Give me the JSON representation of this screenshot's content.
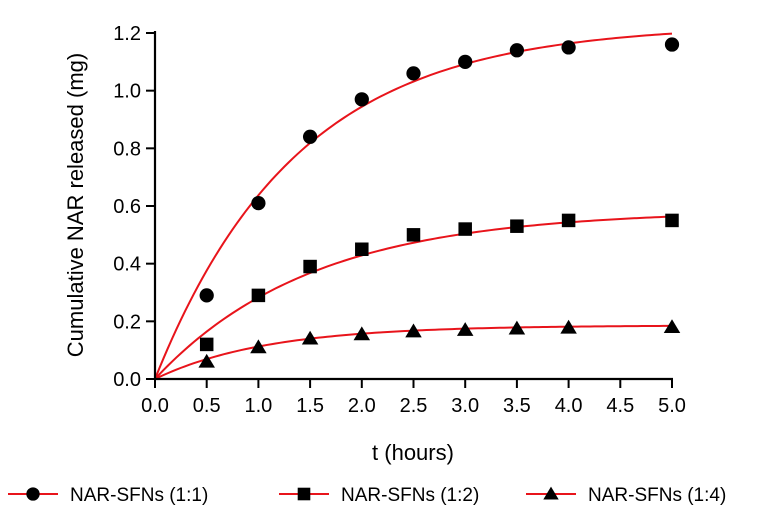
{
  "chart_data": {
    "type": "scatter",
    "title": "",
    "xlabel": "t (hours)",
    "ylabel": "Cumulative NAR released (mg)",
    "xlim": [
      0,
      5
    ],
    "ylim": [
      0,
      1.2
    ],
    "xticks": [
      "0.0",
      "0.5",
      "1.0",
      "1.5",
      "2.0",
      "2.5",
      "3.0",
      "3.5",
      "4.0",
      "4.5",
      "5.0"
    ],
    "yticks": [
      "0.0",
      "0.2",
      "0.4",
      "0.6",
      "0.8",
      "1.0",
      "1.2"
    ],
    "grid": false,
    "legend_position": "bottom",
    "fit_color": "#e8141b",
    "marker_color": "#000000",
    "series": [
      {
        "name": "NAR-SFNs (1:1)",
        "marker": "circle",
        "x": [
          0.5,
          1.0,
          1.5,
          2.0,
          2.5,
          3.0,
          3.5,
          4.0,
          5.0
        ],
        "y": [
          0.29,
          0.61,
          0.84,
          0.97,
          1.06,
          1.1,
          1.14,
          1.15,
          1.16
        ],
        "fit": {
          "model": "first-order",
          "plateau": 1.23,
          "k": 0.73
        }
      },
      {
        "name": "NAR-SFNs (1:2)",
        "marker": "square",
        "x": [
          0.5,
          1.0,
          1.5,
          2.0,
          2.5,
          3.0,
          3.5,
          4.0,
          5.0
        ],
        "y": [
          0.12,
          0.29,
          0.39,
          0.45,
          0.5,
          0.52,
          0.53,
          0.55,
          0.55
        ],
        "fit": {
          "model": "first-order",
          "plateau": 0.585,
          "k": 0.66
        }
      },
      {
        "name": "NAR-SFNs (1:4)",
        "marker": "triangle",
        "x": [
          0.5,
          1.0,
          1.5,
          2.0,
          2.5,
          3.0,
          3.5,
          4.0,
          5.0
        ],
        "y": [
          0.06,
          0.11,
          0.14,
          0.155,
          0.165,
          0.17,
          0.175,
          0.178,
          0.18
        ],
        "fit": {
          "model": "first-order",
          "plateau": 0.186,
          "k": 0.93
        }
      }
    ]
  }
}
